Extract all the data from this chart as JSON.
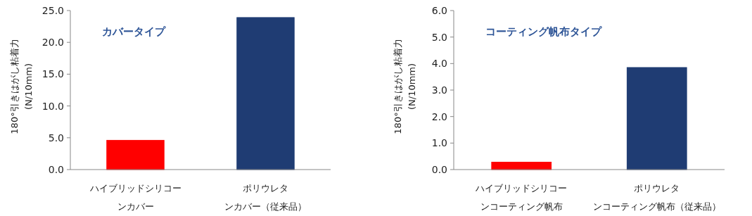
{
  "chart_data": [
    {
      "type": "bar",
      "title": "カバータイプ",
      "ylabel": "180°引きはがし粘着力\n(N/10mm)",
      "categories": [
        "ハイブリッドシリコーンカバー",
        "ポリウレタンカバー（従来品）"
      ],
      "values": [
        4.6,
        23.9
      ],
      "colors": [
        "#ff0000",
        "#1f3c73"
      ],
      "ylim": [
        0,
        25
      ],
      "yticks": [
        {
          "value": 0,
          "label": "0.0"
        },
        {
          "value": 5,
          "label": "5.0"
        },
        {
          "value": 10,
          "label": "10.0"
        },
        {
          "value": 15,
          "label": "15.0"
        },
        {
          "value": 20,
          "label": "20.0"
        },
        {
          "value": 25,
          "label": "25.0"
        }
      ]
    },
    {
      "type": "bar",
      "title": "コーティング帆布タイプ",
      "ylabel": "180°引きはがし粘着力\n(N/10mm)",
      "categories": [
        "ハイブリッドシリコーンコーティング帆布",
        "ポリウレタンコーティング帆布（従来品）"
      ],
      "values": [
        0.28,
        3.85
      ],
      "colors": [
        "#ff0000",
        "#1f3c73"
      ],
      "ylim": [
        0,
        6
      ],
      "yticks": [
        {
          "value": 0,
          "label": "0.0"
        },
        {
          "value": 1,
          "label": "1.0"
        },
        {
          "value": 2,
          "label": "2.0"
        },
        {
          "value": 3,
          "label": "3.0"
        },
        {
          "value": 4,
          "label": "4.0"
        },
        {
          "value": 5,
          "label": "5.0"
        },
        {
          "value": 6,
          "label": "6.0"
        }
      ]
    }
  ]
}
